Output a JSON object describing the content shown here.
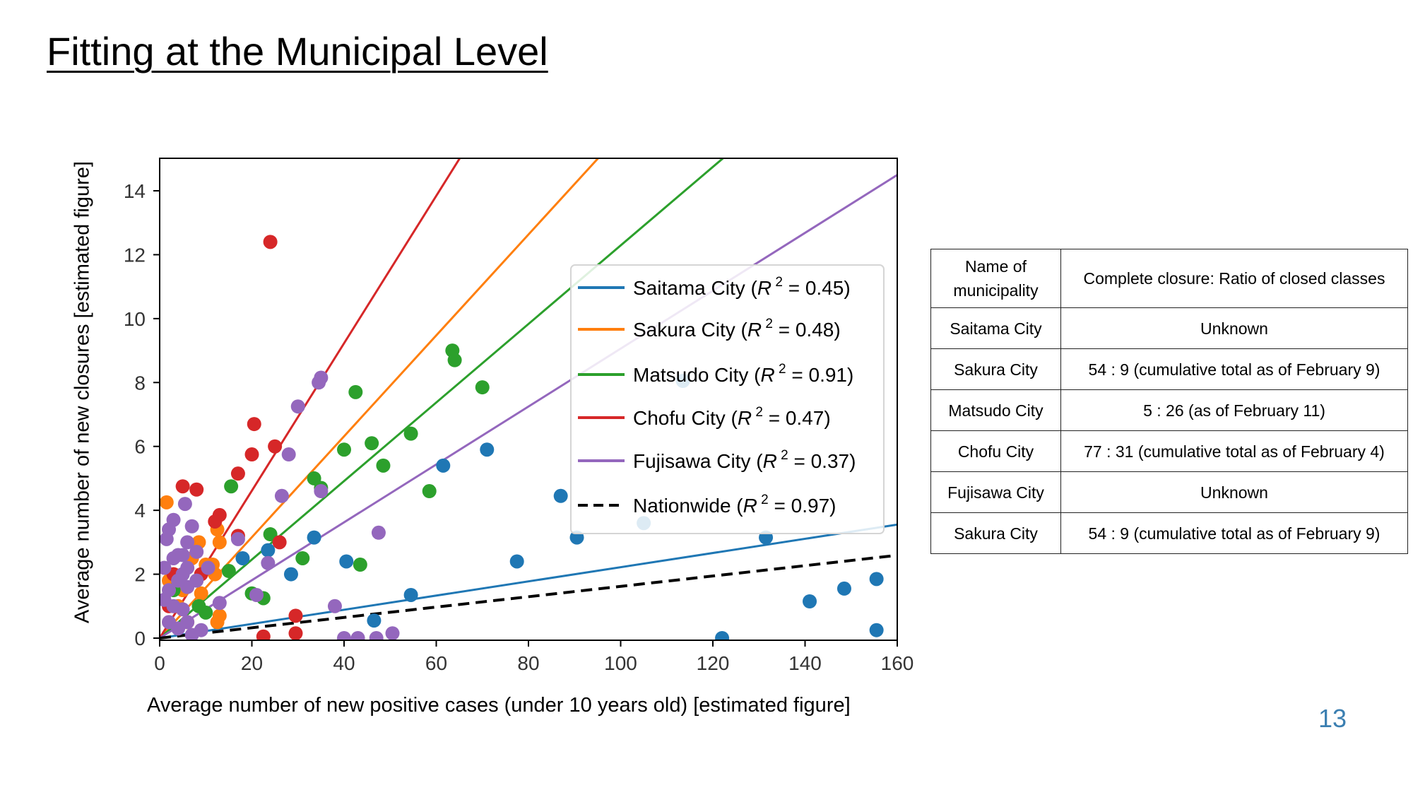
{
  "slide": {
    "title": "Fitting at the Municipal Level",
    "page_number": "13"
  },
  "colors": {
    "Saitama City": "#1f77b4",
    "Sakura City": "#ff7f0e",
    "Matsudo City": "#2ca02c",
    "Chofu City": "#d62728",
    "Fujisawa City": "#9467bd",
    "Nationwide": "#000000"
  },
  "chart_data": {
    "type": "scatter",
    "title": "",
    "xlabel": "Average number of new positive cases (under 10 years old) [estimated figure]",
    "ylabel": "Average number of new closures [estimated figure]",
    "xlim": [
      0,
      160
    ],
    "ylim": [
      0,
      15
    ],
    "xticks": [
      0,
      20,
      40,
      60,
      80,
      100,
      120,
      140,
      160
    ],
    "yticks": [
      0,
      2,
      4,
      6,
      8,
      10,
      12,
      14
    ],
    "grid": false,
    "legend_position": "upper-right",
    "fit_lines": [
      {
        "name": "Saitama City",
        "slope": 0.0222,
        "r2_label": "0.45",
        "style": "solid"
      },
      {
        "name": "Sakura City",
        "slope": 0.1579,
        "r2_label": "0.48",
        "style": "solid"
      },
      {
        "name": "Matsudo City",
        "slope": 0.1229,
        "r2_label": "0.91",
        "style": "solid"
      },
      {
        "name": "Chofu City",
        "slope": 0.2307,
        "r2_label": "0.47",
        "style": "solid"
      },
      {
        "name": "Fujisawa City",
        "slope": 0.0906,
        "r2_label": "0.37",
        "style": "solid"
      },
      {
        "name": "Nationwide",
        "slope": 0.0162,
        "r2_label": "0.97",
        "style": "dashed"
      }
    ],
    "series": [
      {
        "name": "Saitama City",
        "points": [
          [
            155.5,
            1.85
          ],
          [
            155.5,
            0.25
          ],
          [
            148.5,
            1.55
          ],
          [
            141,
            1.15
          ],
          [
            131.5,
            3.15
          ],
          [
            122,
            0.0
          ],
          [
            113.5,
            8.05
          ],
          [
            105,
            3.6
          ],
          [
            90.5,
            3.15
          ],
          [
            87,
            4.45
          ],
          [
            77.5,
            2.4
          ],
          [
            71,
            5.9
          ],
          [
            61.5,
            5.4
          ],
          [
            54.5,
            1.35
          ],
          [
            46.5,
            0.55
          ],
          [
            40.5,
            2.4
          ],
          [
            33.5,
            3.15
          ],
          [
            28.5,
            2.0
          ],
          [
            23.5,
            2.75
          ],
          [
            18,
            2.5
          ]
        ]
      },
      {
        "name": "Sakura City",
        "points": [
          [
            1.5,
            4.25
          ],
          [
            3,
            2.0
          ],
          [
            5,
            1.5
          ],
          [
            7,
            2.5
          ],
          [
            8.5,
            3.0
          ],
          [
            10,
            2.3
          ],
          [
            11.5,
            2.3
          ],
          [
            12.5,
            3.4
          ],
          [
            13,
            3.0
          ],
          [
            13,
            0.7
          ],
          [
            12.5,
            0.5
          ],
          [
            4,
            1.0
          ],
          [
            2,
            1.8
          ],
          [
            6,
            0.5
          ],
          [
            9,
            1.4
          ],
          [
            12,
            2.0
          ]
        ]
      },
      {
        "name": "Matsudo City",
        "points": [
          [
            63.5,
            9.0
          ],
          [
            64,
            8.7
          ],
          [
            70,
            7.85
          ],
          [
            54.5,
            6.4
          ],
          [
            46,
            6.1
          ],
          [
            42.5,
            7.7
          ],
          [
            40,
            5.9
          ],
          [
            48.5,
            5.4
          ],
          [
            35,
            4.7
          ],
          [
            33.5,
            5.0
          ],
          [
            58.5,
            4.6
          ],
          [
            43.5,
            2.3
          ],
          [
            31,
            2.5
          ],
          [
            24,
            3.25
          ],
          [
            22.5,
            1.25
          ],
          [
            15.5,
            4.75
          ],
          [
            15,
            2.1
          ],
          [
            10,
            0.8
          ],
          [
            8.5,
            1.0
          ],
          [
            5,
            2.0
          ],
          [
            3,
            1.5
          ],
          [
            20,
            1.4
          ]
        ]
      },
      {
        "name": "Chofu City",
        "points": [
          [
            24,
            12.4
          ],
          [
            20.5,
            6.7
          ],
          [
            25,
            6.0
          ],
          [
            20,
            5.75
          ],
          [
            17,
            5.15
          ],
          [
            5,
            4.75
          ],
          [
            8,
            4.65
          ],
          [
            13,
            3.85
          ],
          [
            12,
            3.65
          ],
          [
            26,
            3.0
          ],
          [
            29.5,
            0.7
          ],
          [
            29.5,
            0.15
          ],
          [
            22.5,
            0.05
          ],
          [
            17,
            3.2
          ],
          [
            9,
            2.0
          ],
          [
            3,
            2.0
          ],
          [
            2,
            1.0
          ]
        ]
      },
      {
        "name": "Fujisawa City",
        "points": [
          [
            35,
            8.15
          ],
          [
            34.5,
            8.0
          ],
          [
            30,
            7.25
          ],
          [
            28,
            5.75
          ],
          [
            35,
            4.6
          ],
          [
            26.5,
            4.45
          ],
          [
            5.5,
            4.2
          ],
          [
            47.5,
            3.3
          ],
          [
            21,
            1.35
          ],
          [
            13,
            1.1
          ],
          [
            38,
            1.0
          ],
          [
            40,
            0.0
          ],
          [
            43,
            0.0
          ],
          [
            47,
            0.0
          ],
          [
            50.5,
            0.15
          ],
          [
            1.5,
            3.1
          ],
          [
            3,
            3.7
          ],
          [
            2,
            3.4
          ],
          [
            4,
            2.6
          ],
          [
            6,
            3.0
          ],
          [
            7,
            3.5
          ],
          [
            8,
            2.7
          ],
          [
            3,
            2.5
          ],
          [
            5,
            2.0
          ],
          [
            6,
            1.6
          ],
          [
            1,
            1.2
          ],
          [
            2,
            0.5
          ],
          [
            4,
            0.3
          ],
          [
            7,
            0.1
          ],
          [
            5,
            0.9
          ],
          [
            3,
            1.0
          ],
          [
            1,
            2.2
          ],
          [
            9,
            0.25
          ],
          [
            23.5,
            2.35
          ],
          [
            17,
            3.1
          ],
          [
            10.5,
            2.2
          ],
          [
            5,
            2.6
          ],
          [
            6,
            2.2
          ],
          [
            4,
            1.8
          ],
          [
            2,
            1.5
          ],
          [
            8,
            1.8
          ],
          [
            6,
            0.5
          ]
        ]
      }
    ],
    "legend": [
      {
        "name": "Saitama City",
        "prefix": "Saitama City (",
        "r2": "0.45"
      },
      {
        "name": "Sakura City",
        "prefix": "Sakura City (",
        "r2": "0.48"
      },
      {
        "name": "Matsudo City",
        "prefix": "Matsudo City (",
        "r2": "0.91"
      },
      {
        "name": "Chofu City",
        "prefix": "Chofu City (",
        "r2": "0.47"
      },
      {
        "name": "Fujisawa City",
        "prefix": "Fujisawa City (",
        "r2": "0.37"
      },
      {
        "name": "Nationwide",
        "prefix": "Nationwide (",
        "r2": "0.97"
      }
    ]
  },
  "table": {
    "header": [
      "Name of municipality",
      "Complete closure: Ratio of closed classes"
    ],
    "rows": [
      [
        "Saitama City",
        "Unknown"
      ],
      [
        "Sakura City",
        "54 : 9 (cumulative total as of February 9)"
      ],
      [
        "Matsudo City",
        "5 : 26 (as of February 11)"
      ],
      [
        "Chofu City",
        "77 : 31 (cumulative total as of February 4)"
      ],
      [
        "Fujisawa City",
        "Unknown"
      ],
      [
        "Sakura City",
        "54 : 9 (cumulative total as of February 9)"
      ]
    ]
  }
}
